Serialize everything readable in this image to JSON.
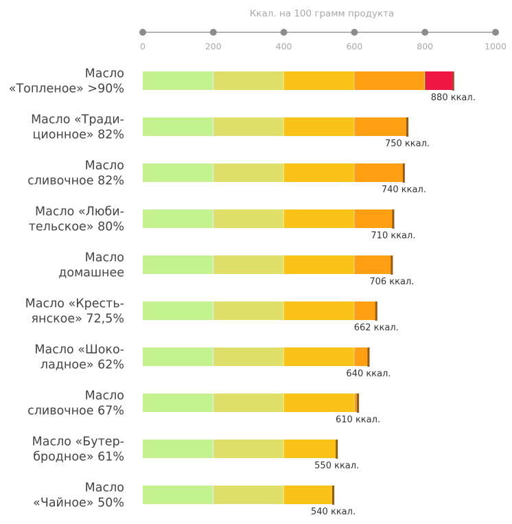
{
  "chart_data": {
    "type": "bar",
    "orientation": "horizontal",
    "stacked_color_bands": true,
    "axis_title": "Ккал. на 100 грамм продукта",
    "axis_position": "top",
    "xlim": [
      0,
      1000
    ],
    "ticks": [
      0,
      200,
      400,
      600,
      800,
      1000
    ],
    "tick_labels": [
      "0",
      "200",
      "400",
      "600",
      "800",
      "1000"
    ],
    "grid": false,
    "band_colors": [
      "#c4f28e",
      "#dfe06a",
      "#fbc318",
      "#ff9f14",
      "#ef1844"
    ],
    "band_edges": [
      0,
      200,
      400,
      600,
      800,
      1000
    ],
    "end_marker_color": "#8a5a2b",
    "categories": [
      [
        "Масло",
        "«Топленое» >90%"
      ],
      [
        "Масло «Тради-",
        "ционное» 82%"
      ],
      [
        "Масло",
        "сливочное 82%"
      ],
      [
        "Масло «Люби-",
        "тельское» 80%"
      ],
      [
        "Масло",
        "домашнее"
      ],
      [
        "Масло «Кресть-",
        "янское» 72,5%"
      ],
      [
        "Масло «Шоко-",
        "ладное» 62%"
      ],
      [
        "Масло",
        "сливочное 67%"
      ],
      [
        "Масло «Бутер-",
        "бродное» 61%"
      ],
      [
        "Масло",
        "«Чайное» 50%"
      ]
    ],
    "values": [
      880,
      750,
      740,
      710,
      706,
      662,
      640,
      610,
      550,
      540
    ],
    "value_labels": [
      "880 ккал.",
      "750 ккал.",
      "740 ккал.",
      "710 ккал.",
      "706 ккал.",
      "662 ккал.",
      "640 ккал.",
      "610 ккал.",
      "550 ккал.",
      "540 ккал."
    ]
  }
}
